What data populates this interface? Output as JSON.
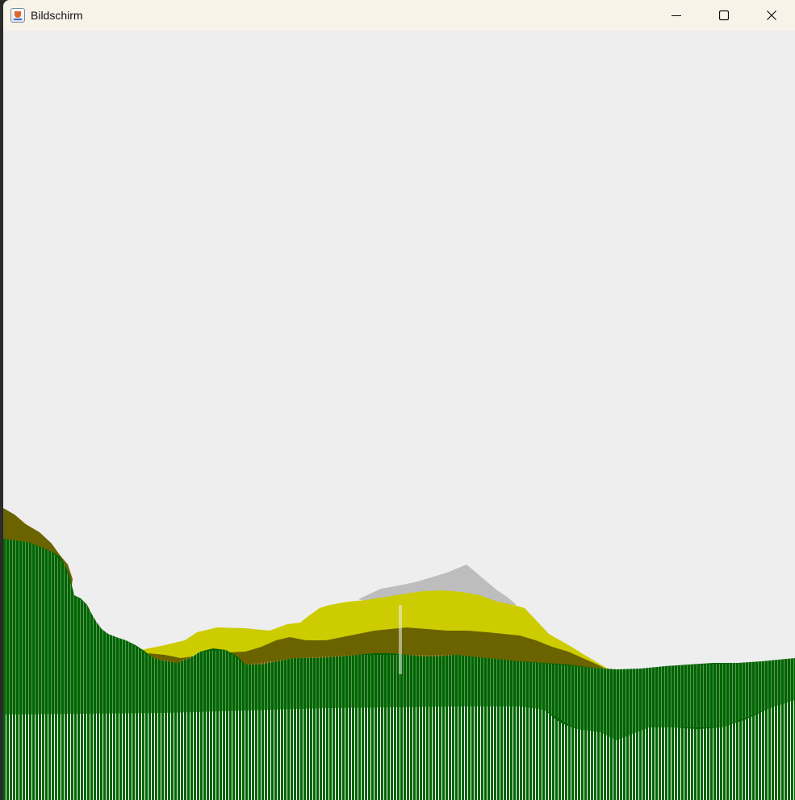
{
  "window": {
    "title": "Bildschirm",
    "controls": {
      "minimize_icon": "minimize-icon",
      "maximize_icon": "maximize-icon",
      "close_icon": "close-icon"
    }
  },
  "canvas": {
    "background": "#eeeeee",
    "layer_colors": {
      "snow": "#bdbdbd",
      "sand": "#cccc00",
      "dirt": "#6b6300",
      "grass": "#006400",
      "stripe": "#ffffff"
    }
  }
}
